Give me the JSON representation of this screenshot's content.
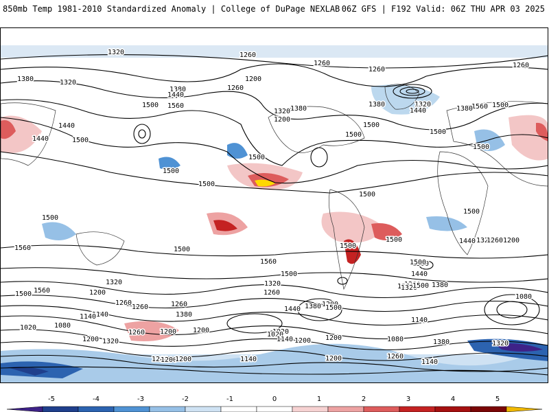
{
  "header": {
    "left": "850mb Temp 1981-2010 Standardized Anomaly | College of DuPage NEXLAB",
    "right": "06Z GFS | F192 Valid: 06Z THU APR 03 2025"
  },
  "map": {
    "contour_labels": [
      "1320",
      "1260",
      "1260",
      "1260",
      "1260",
      "1380",
      "1320",
      "1200",
      "1260",
      "1380",
      "1440",
      "1560",
      "1500",
      "1440",
      "1380",
      "1320",
      "1200",
      "1380",
      "1320",
      "1440",
      "1500",
      "1440",
      "1500",
      "1500",
      "1500",
      "1500",
      "1500",
      "1500",
      "1500",
      "1500",
      "1500",
      "1500",
      "1500",
      "1500",
      "1500",
      "1560",
      "1560",
      "1560",
      "1500",
      "1500",
      "1560",
      "1440",
      "1380",
      "1320",
      "1260",
      "1200",
      "1440",
      "1500",
      "1320",
      "1260",
      "1560",
      "1500",
      "1260",
      "1380",
      "1320",
      "1200",
      "1440",
      "1380",
      "1500",
      "1380",
      "1320",
      "1200",
      "1260",
      "1500",
      "1140",
      "1080",
      "1020",
      "1080",
      "1020",
      "1260",
      "1200",
      "1320",
      "1200",
      "1260",
      "1140",
      "1380",
      "1260",
      "1200",
      "1020",
      "1140",
      "1200",
      "1140",
      "1080",
      "1200",
      "1320",
      "1380",
      "1260",
      "1200",
      "1140",
      "1200",
      "1260",
      "1140",
      "1200"
    ],
    "colors": {
      "cold_strong": "#2a1e6e",
      "cold_mid": "#3a84c8",
      "cold_light": "#bcd8ee",
      "warm_light": "#f3c6c6",
      "warm_mid": "#d84040",
      "warm_strong": "#8c1010",
      "extreme": "#ffd800",
      "contour": "#000000",
      "land": "#333333"
    }
  },
  "colorbar": {
    "ticks": [
      "-5",
      "-4",
      "-3",
      "-2",
      "-1",
      "0",
      "1",
      "2",
      "3",
      "4",
      "5"
    ],
    "min": -6,
    "max": 6,
    "colors": [
      "#3e2288",
      "#1f3f8c",
      "#2c63b0",
      "#4f92d4",
      "#96c0e6",
      "#cfe2f3",
      "#ffffff",
      "#ffffff",
      "#f6d2d2",
      "#eda2a2",
      "#dd5c5c",
      "#c42222",
      "#a51010",
      "#7a0606",
      "#f0b800"
    ]
  }
}
